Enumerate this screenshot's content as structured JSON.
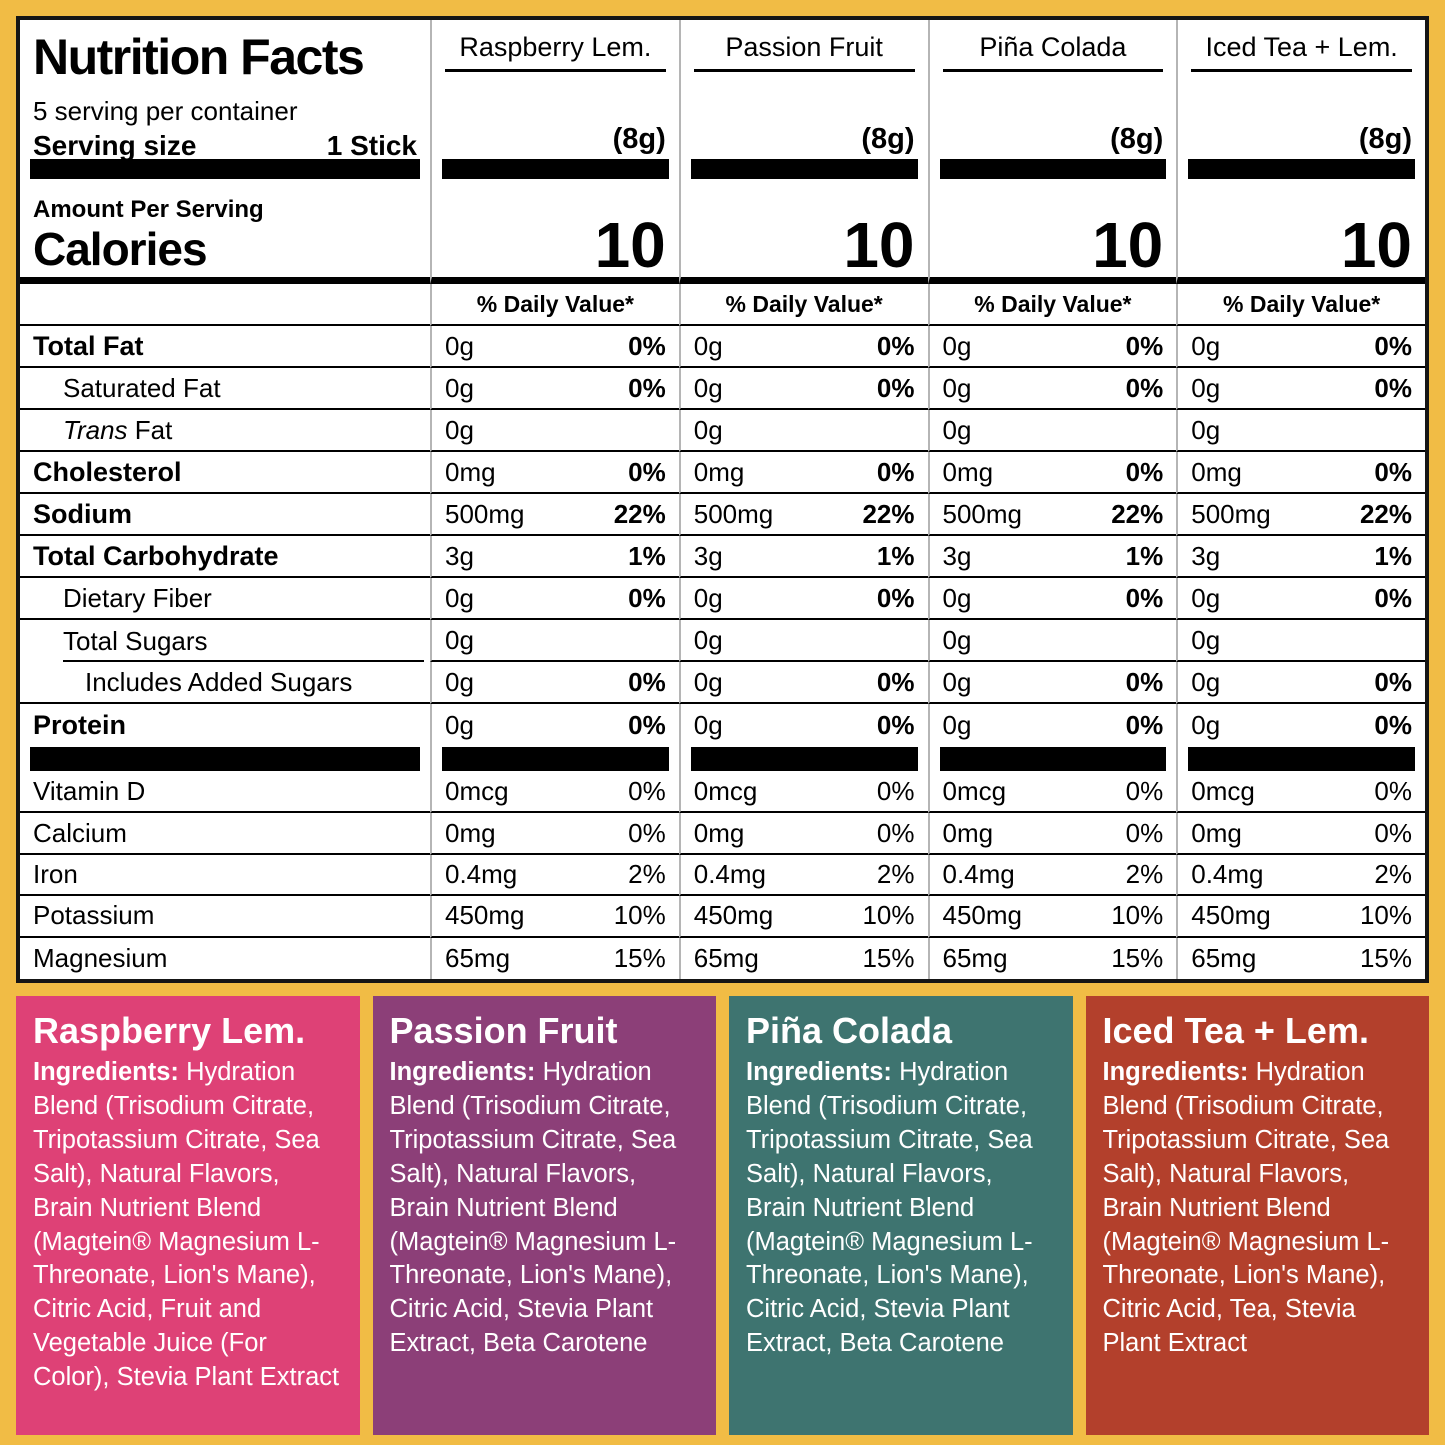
{
  "frame": {
    "background": "#F1BC45"
  },
  "table": {
    "title": "Nutrition Facts",
    "servings_per_container": "5 serving per container",
    "serving_size_label": "Serving size",
    "serving_size_value": "1 Stick",
    "amount_per_serving": "Amount Per Serving",
    "calories_label": "Calories",
    "daily_value_header": "% Daily Value*",
    "columns": [
      {
        "name": "Raspberry Lem.",
        "serving_weight": "(8g)",
        "calories": "10"
      },
      {
        "name": "Passion Fruit",
        "serving_weight": "(8g)",
        "calories": "10"
      },
      {
        "name": "Piña Colada",
        "serving_weight": "(8g)",
        "calories": "10"
      },
      {
        "name": "Iced Tea + Lem.",
        "serving_weight": "(8g)",
        "calories": "10"
      }
    ],
    "rows": [
      {
        "label": "Total Fat",
        "style": "bold",
        "amount": "0g",
        "dv": "0%"
      },
      {
        "label": "Saturated Fat",
        "style": "indent",
        "amount": "0g",
        "dv": "0%"
      },
      {
        "label_italic": "Trans",
        "label": " Fat",
        "style": "indent",
        "amount": "0g",
        "dv": ""
      },
      {
        "label": "Cholesterol",
        "style": "bold",
        "amount": "0mg",
        "dv": "0%"
      },
      {
        "label": "Sodium",
        "style": "bold",
        "amount": "500mg",
        "dv": "22%"
      },
      {
        "label": "Total Carbohydrate",
        "style": "bold",
        "amount": "3g",
        "dv": "1%"
      },
      {
        "label": "Dietary Fiber",
        "style": "indent",
        "amount": "0g",
        "dv": "0%"
      },
      {
        "label": "Total Sugars",
        "style": "indent",
        "indent_line": true,
        "amount": "0g",
        "dv": ""
      },
      {
        "label": "Includes Added Sugars",
        "style": "indent2",
        "amount": "0g",
        "dv": "0%"
      },
      {
        "label": "Protein",
        "style": "bold",
        "amount": "0g",
        "dv": "0%",
        "last": true
      }
    ],
    "micronutrient_rows": [
      {
        "label": "Vitamin D",
        "amount": "0mcg",
        "dv": "0%"
      },
      {
        "label": "Calcium",
        "amount": "0mg",
        "dv": "0%"
      },
      {
        "label": "Iron",
        "amount": "0.4mg",
        "dv": "2%"
      },
      {
        "label": "Potassium",
        "amount": "450mg",
        "dv": "10%"
      },
      {
        "label": "Magnesium",
        "amount": "65mg",
        "dv": "15%"
      }
    ]
  },
  "panels": [
    {
      "name": "Raspberry Lem.",
      "background": "#DE4176",
      "ingredients_label": "Ingredients:",
      "ingredients_text": "Hydration Blend (Trisodium Citrate, Tripotassium Citrate, Sea Salt), Natural Flavors, Brain Nutrient Blend (Magtein® Magnesium L-Threonate, Lion's Mane), Citric Acid, Fruit and Vegetable Juice (For Color), Stevia Plant Extract"
    },
    {
      "name": "Passion Fruit",
      "background": "#8C3F78",
      "ingredients_label": "Ingredients:",
      "ingredients_text": "Hydration Blend (Trisodium Citrate, Tripotassium Citrate, Sea Salt), Natural Flavors, Brain Nutrient Blend (Magtein® Magnesium L-Threonate, Lion's Mane), Citric Acid, Stevia Plant Extract, Beta Carotene"
    },
    {
      "name": "Piña Colada",
      "background": "#3E7470",
      "ingredients_label": "Ingredients:",
      "ingredients_text": "Hydration Blend (Trisodium Citrate, Tripotassium Citrate, Sea Salt), Natural Flavors, Brain Nutrient Blend (Magtein® Magnesium L-Threonate, Lion's Mane), Citric Acid, Stevia Plant Extract, Beta Carotene"
    },
    {
      "name": "Iced Tea + Lem.",
      "background": "#B3402C",
      "ingredients_label": "Ingredients:",
      "ingredients_text": "Hydration Blend (Trisodium Citrate, Tripotassium Citrate, Sea Salt), Natural Flavors, Brain Nutrient Blend (Magtein® Magnesium L-Threonate, Lion's Mane), Citric Acid, Tea, Stevia Plant Extract"
    }
  ]
}
